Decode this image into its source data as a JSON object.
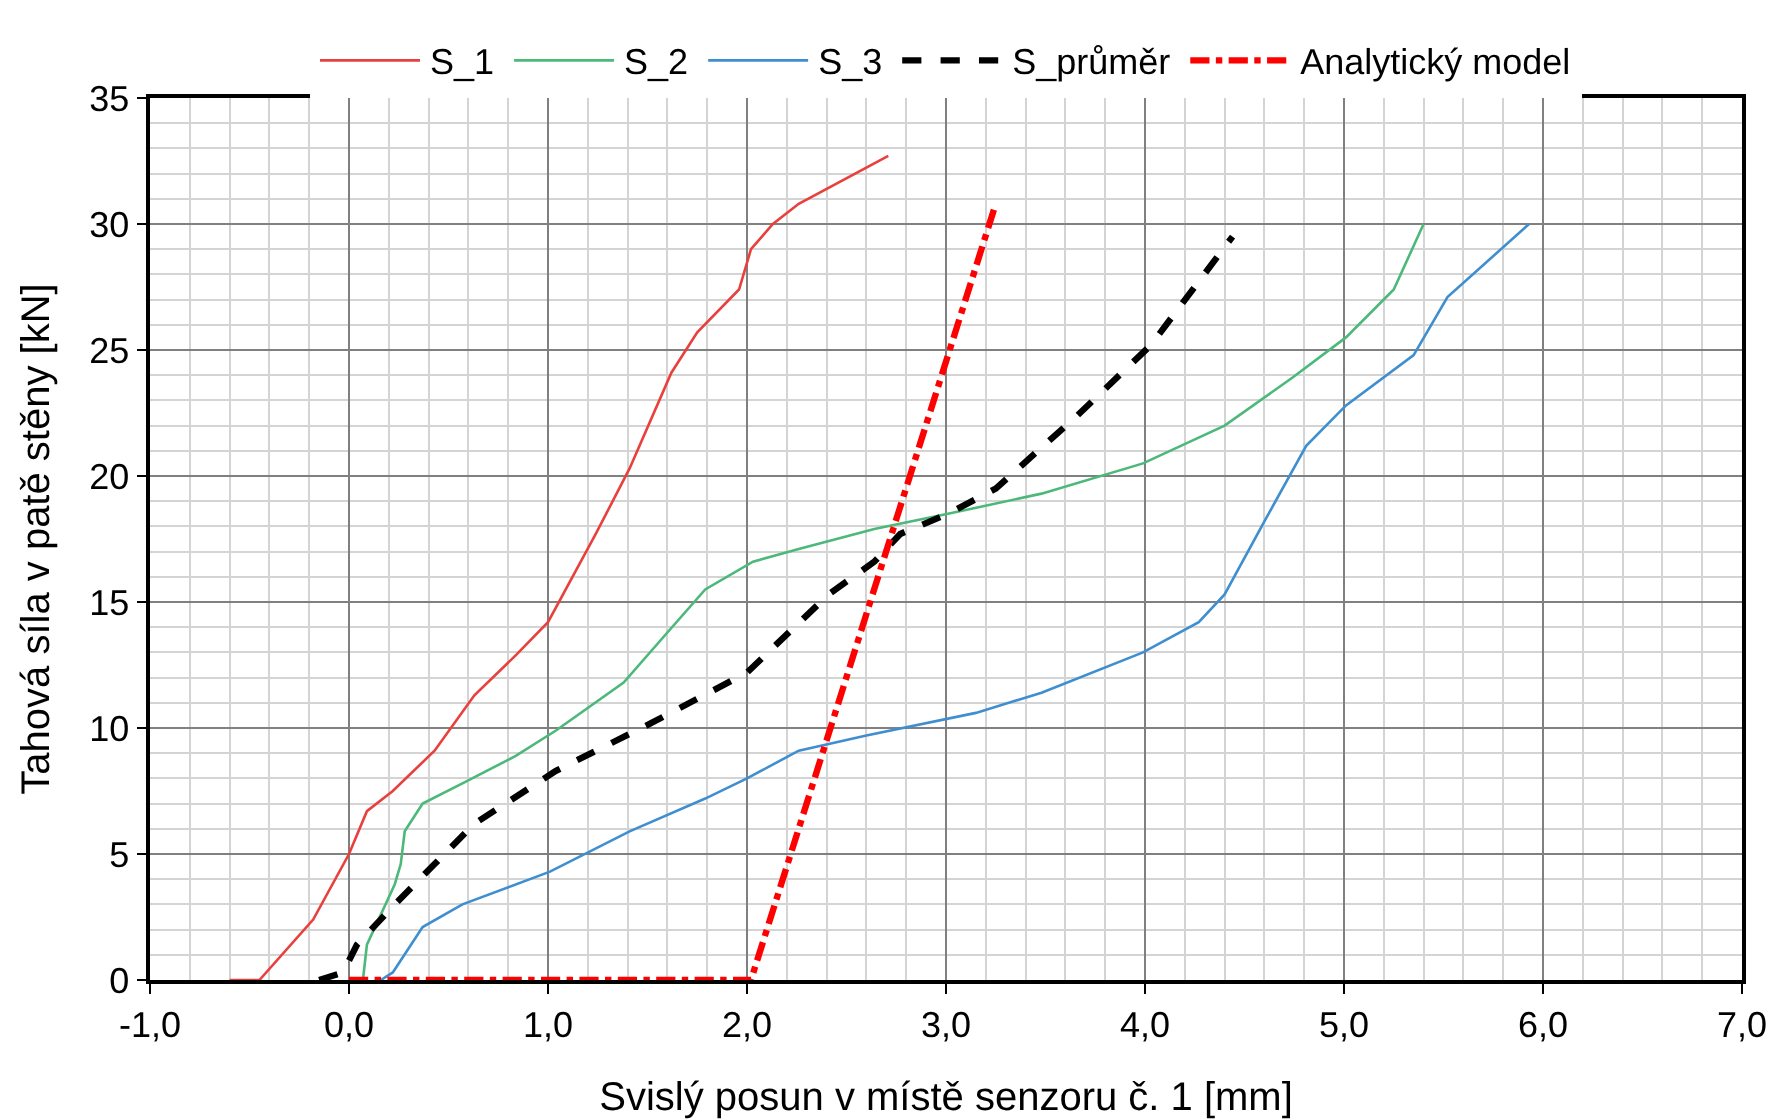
{
  "chart_data": {
    "type": "line",
    "xlabel": "Svislý posun v místě senzoru č. 1 [mm]",
    "ylabel": "Tahová síla v patě stěny [kN]",
    "xlim": [
      -1,
      7
    ],
    "xticks": [
      {
        "value": -1,
        "label": "-1,0"
      },
      {
        "value": 0,
        "label": "0,0"
      },
      {
        "value": 1,
        "label": "1,0"
      },
      {
        "value": 2,
        "label": "2,0"
      },
      {
        "value": 3,
        "label": "3,0"
      },
      {
        "value": 4,
        "label": "4,0"
      },
      {
        "value": 5,
        "label": "5,0"
      },
      {
        "value": 6,
        "label": "6,0"
      },
      {
        "value": 7,
        "label": "7,0"
      }
    ],
    "ylim": [
      0,
      35
    ],
    "yticks": [
      0,
      5,
      10,
      15,
      20,
      25,
      30,
      35
    ],
    "grid": true,
    "legend": "top",
    "marker": "none",
    "series": [
      {
        "name": "S_1",
        "color": "#e8403c",
        "line_style": "solid",
        "x": [
          -0.6,
          -0.45,
          -0.18,
          0,
          0.09,
          0.22,
          0.43,
          0.63,
          0.84,
          1.0,
          1.24,
          1.41,
          1.62,
          1.75,
          1.96,
          2.02,
          2.13,
          2.26,
          2.71
        ],
        "values": [
          0,
          0,
          2.4,
          5,
          6.7,
          7.5,
          9.1,
          11.3,
          12.9,
          14.2,
          17.7,
          20.3,
          24.1,
          25.7,
          27.4,
          29,
          30,
          30.8,
          32.7
        ]
      },
      {
        "name": "S_2",
        "color": "#4cb87a",
        "line_style": "solid",
        "x": [
          0.07,
          0.09,
          0.23,
          0.26,
          0.28,
          0.37,
          0.57,
          0.84,
          1.04,
          1.38,
          1.59,
          1.79,
          2.03,
          2.26,
          2.64,
          3.01,
          3.48,
          3.99,
          4.4,
          4.74,
          5.01,
          5.25,
          5.4
        ],
        "values": [
          0,
          1.4,
          3.8,
          4.6,
          5.9,
          7,
          7.8,
          8.9,
          9.9,
          11.8,
          13.7,
          15.5,
          16.6,
          17.1,
          17.9,
          18.5,
          19.3,
          20.5,
          22,
          23.9,
          25.5,
          27.4,
          30
        ]
      },
      {
        "name": "S_3",
        "color": "#3f8fd0",
        "line_style": "solid",
        "x": [
          0.16,
          0.22,
          0.37,
          0.57,
          1.01,
          1.41,
          1.79,
          2.0,
          2.26,
          2.6,
          3.15,
          3.48,
          3.99,
          4.27,
          4.4,
          4.6,
          4.81,
          5.01,
          5.35,
          5.52,
          5.93
        ],
        "values": [
          0,
          0.3,
          2.1,
          3,
          4.3,
          5.9,
          7.2,
          8,
          9.1,
          9.7,
          10.6,
          11.4,
          13,
          14.2,
          15.3,
          18.2,
          21.2,
          22.8,
          24.8,
          27.1,
          30
        ]
      },
      {
        "name": "S_průměr",
        "color": "#000000",
        "line_style": "dashed",
        "x": [
          -0.15,
          -0.03,
          0.04,
          0.23,
          0.43,
          0.63,
          1.04,
          1.52,
          2.0,
          2.41,
          2.64,
          2.77,
          3.01,
          3.25,
          3.66,
          4.03,
          4.44
        ],
        "values": [
          0,
          0.3,
          1.4,
          3,
          4.6,
          6.2,
          8.3,
          10.2,
          12.2,
          15.3,
          16.6,
          17.7,
          18.5,
          19.5,
          22.4,
          25.2,
          29.5
        ]
      },
      {
        "name": "Analytický model",
        "color": "#ff0000",
        "line_style": "dashdot",
        "x": [
          0,
          2.02,
          3.25
        ],
        "values": [
          0,
          0,
          30.8
        ]
      }
    ]
  }
}
